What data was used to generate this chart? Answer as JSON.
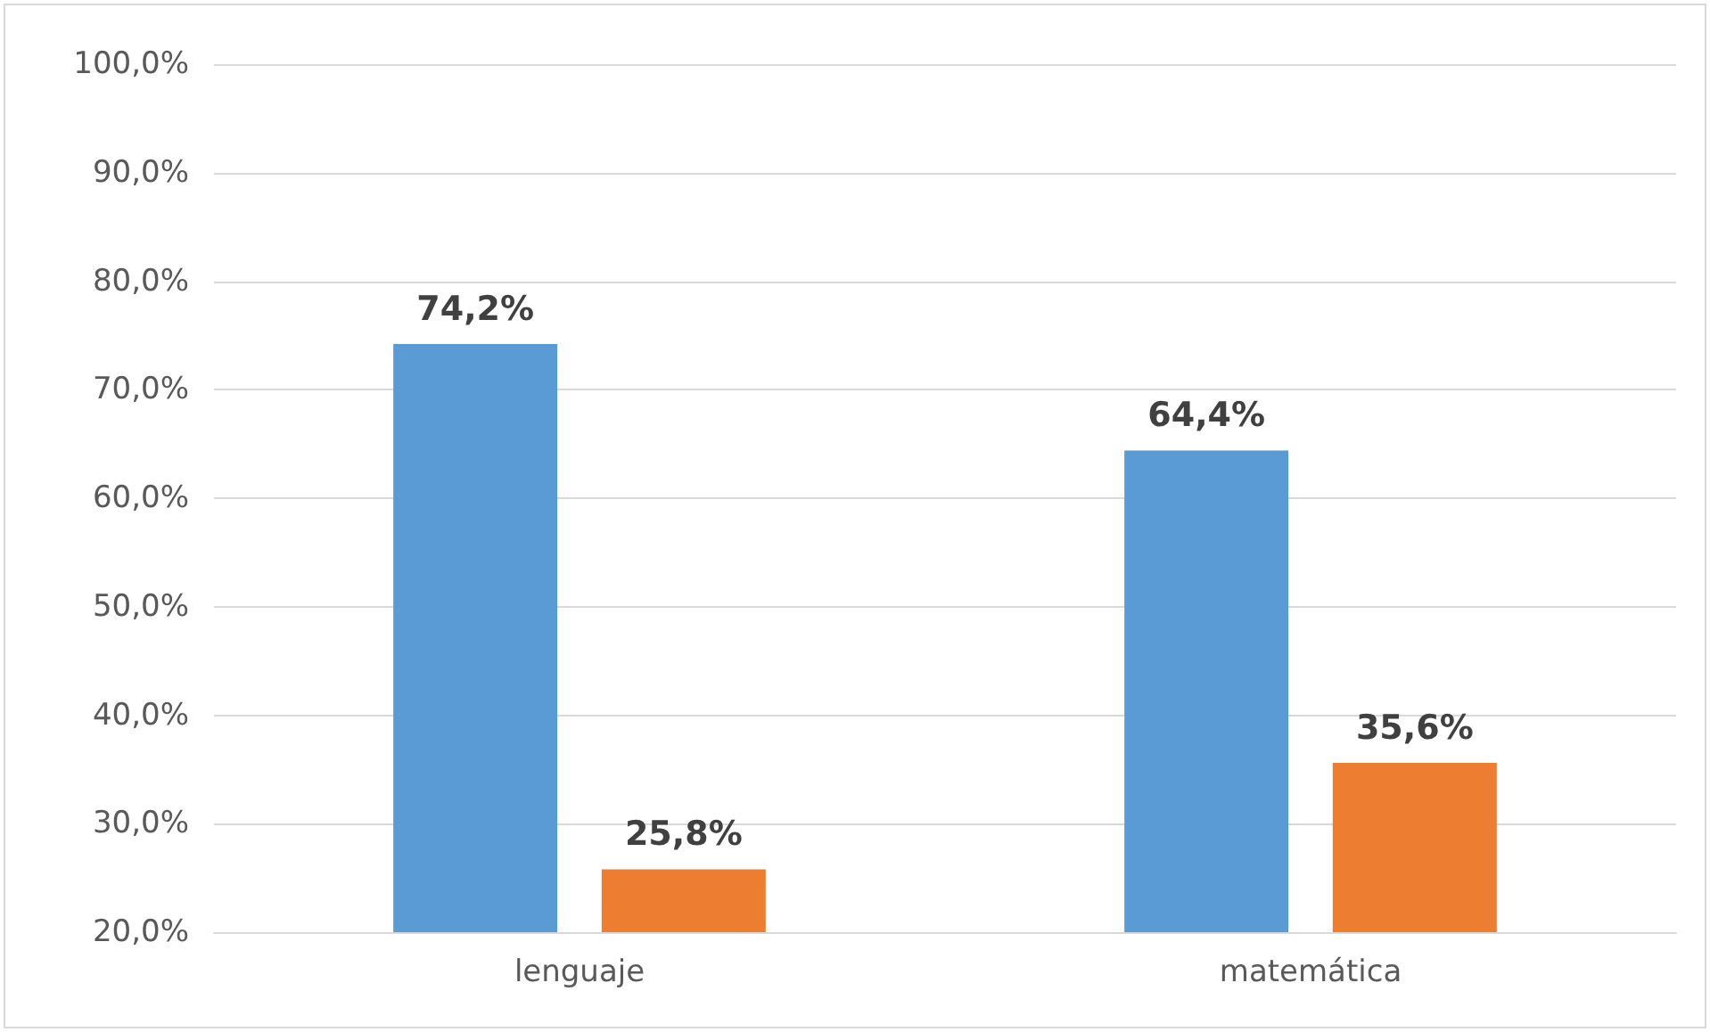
{
  "chart_data": {
    "type": "bar",
    "categories": [
      "lenguaje",
      "matemática"
    ],
    "series": [
      {
        "color": "#5b9bd5",
        "values": [
          74.2,
          64.4
        ],
        "value_labels": [
          "74,2%",
          "64,4%"
        ]
      },
      {
        "color": "#ed7d31",
        "values": [
          25.8,
          35.6
        ],
        "value_labels": [
          "25,8%",
          "35,6%"
        ]
      }
    ],
    "ylim": [
      20,
      100
    ],
    "yticks": [
      {
        "value": 20,
        "label": "20,0%"
      },
      {
        "value": 30,
        "label": "30,0%"
      },
      {
        "value": 40,
        "label": "40,0%"
      },
      {
        "value": 50,
        "label": "50,0%"
      },
      {
        "value": 60,
        "label": "60,0%"
      },
      {
        "value": 70,
        "label": "70,0%"
      },
      {
        "value": 80,
        "label": "80,0%"
      },
      {
        "value": 90,
        "label": "90,0%"
      },
      {
        "value": 100,
        "label": "100,0%"
      }
    ],
    "grid": "y"
  }
}
